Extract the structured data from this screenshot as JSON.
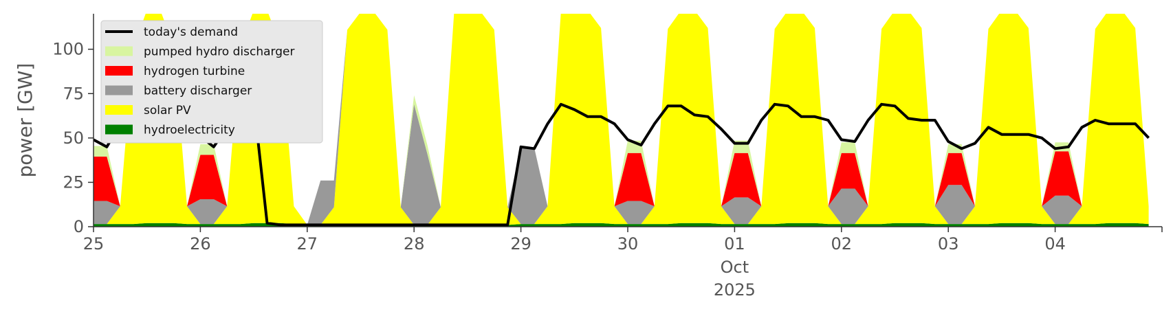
{
  "chart_data": {
    "type": "area",
    "title": "",
    "xlabel": "",
    "ylabel": "power [GW]",
    "ylim": [
      0,
      120
    ],
    "yticks": [
      0,
      25,
      50,
      75,
      100
    ],
    "x_start": "2025-09-25T00:00",
    "x_end": "2025-10-05T00:00",
    "step_hours": 3,
    "xticks": [
      {
        "label": "25",
        "date": "2025-09-25"
      },
      {
        "label": "26",
        "date": "2025-09-26"
      },
      {
        "label": "27",
        "date": "2025-09-27"
      },
      {
        "label": "28",
        "date": "2025-09-28"
      },
      {
        "label": "29",
        "date": "2025-09-29"
      },
      {
        "label": "30",
        "date": "2025-09-30"
      },
      {
        "label": "01",
        "date": "2025-10-01",
        "sub": [
          "Oct",
          "2025"
        ]
      },
      {
        "label": "02",
        "date": "2025-10-02"
      },
      {
        "label": "03",
        "date": "2025-10-03"
      },
      {
        "label": "04",
        "date": "2025-10-04"
      }
    ],
    "grid": false,
    "legend_position": "top-left",
    "series": [
      {
        "name": "hydroelectricity",
        "color": "#008000",
        "values": [
          1.5,
          1.5,
          1.5,
          1.5,
          2,
          2,
          2,
          1.5,
          1.5,
          1.5,
          1.5,
          1.5,
          2,
          2,
          2,
          1.5,
          1,
          1,
          1,
          1,
          1,
          1,
          1,
          1,
          1,
          1,
          1,
          1,
          1,
          1,
          1,
          1,
          1.5,
          1.5,
          1.5,
          1.5,
          2,
          2,
          2,
          1.5,
          1.5,
          1.5,
          1.5,
          1.5,
          2,
          2,
          2,
          1.5,
          1.5,
          1.5,
          1.5,
          1.5,
          2,
          2,
          2,
          1.5,
          1.5,
          1.5,
          1.5,
          1.5,
          2,
          2,
          2,
          1.5,
          1.5,
          1.5,
          1.5,
          1.5,
          2,
          2,
          2,
          1.5,
          1.5,
          1.5,
          1.5,
          1.5,
          2,
          2,
          2,
          1.5
        ]
      },
      {
        "name": "solar PV",
        "color": "#ffff00",
        "values": [
          0,
          0,
          10,
          100,
          120,
          120,
          100,
          10,
          0,
          0,
          10,
          100,
          120,
          120,
          100,
          10,
          0,
          0,
          10,
          110,
          120,
          120,
          110,
          10,
          0,
          0,
          10,
          120,
          120,
          120,
          110,
          10,
          0,
          0,
          10,
          120,
          120,
          120,
          110,
          10,
          0,
          0,
          10,
          110,
          120,
          120,
          110,
          10,
          0,
          0,
          10,
          110,
          120,
          120,
          110,
          10,
          0,
          0,
          10,
          110,
          120,
          120,
          110,
          10,
          0,
          0,
          10,
          110,
          120,
          120,
          110,
          10,
          0,
          0,
          10,
          110,
          120,
          120,
          110,
          10
        ]
      },
      {
        "name": "battery discharger",
        "color": "#999999",
        "values": [
          13,
          13,
          0,
          0,
          0,
          0,
          0,
          0,
          14,
          14,
          0,
          0,
          0,
          0,
          0,
          0,
          0,
          25,
          15,
          0,
          0,
          0,
          0,
          0,
          68,
          40,
          0,
          0,
          0,
          0,
          0,
          0,
          43,
          43,
          0,
          0,
          0,
          0,
          0,
          0,
          13,
          13,
          0,
          0,
          0,
          0,
          0,
          0,
          15,
          15,
          0,
          0,
          0,
          0,
          0,
          0,
          20,
          20,
          0,
          0,
          0,
          0,
          0,
          0,
          22,
          22,
          0,
          0,
          0,
          0,
          0,
          0,
          16,
          16,
          0,
          0,
          0,
          0,
          0,
          0
        ]
      },
      {
        "name": "hydrogen turbine",
        "color": "#ff0000",
        "values": [
          25,
          25,
          0,
          0,
          0,
          0,
          0,
          0,
          25,
          25,
          0,
          0,
          0,
          0,
          0,
          0,
          0,
          0,
          0,
          0,
          0,
          0,
          0,
          0,
          0,
          0,
          0,
          0,
          0,
          0,
          0,
          0,
          0,
          0,
          0,
          0,
          0,
          0,
          0,
          0,
          27,
          27,
          0,
          0,
          0,
          0,
          0,
          0,
          25,
          25,
          0,
          0,
          0,
          0,
          0,
          0,
          20,
          20,
          0,
          0,
          0,
          0,
          0,
          0,
          18,
          18,
          0,
          0,
          0,
          0,
          0,
          0,
          25,
          25,
          0,
          0,
          0,
          0,
          0,
          0
        ]
      },
      {
        "name": "pumped hydro discharger",
        "color": "#d8f5a0",
        "values": [
          6,
          6,
          0,
          0,
          0,
          0,
          0,
          0,
          6,
          6,
          0,
          0,
          0,
          0,
          0,
          0,
          0,
          0,
          0,
          0,
          0,
          0,
          0,
          0,
          5,
          5,
          0,
          0,
          0,
          0,
          0,
          0,
          0,
          0,
          0,
          0,
          0,
          0,
          0,
          0,
          7,
          7,
          0,
          0,
          0,
          0,
          0,
          0,
          7,
          7,
          0,
          0,
          0,
          0,
          0,
          0,
          6,
          6,
          0,
          0,
          0,
          0,
          0,
          0,
          5,
          5,
          0,
          0,
          0,
          0,
          0,
          0,
          5,
          5,
          0,
          0,
          0,
          0,
          0,
          0
        ]
      },
      {
        "name": "today's demand",
        "color": "#000000",
        "type": "line",
        "values": [
          49,
          45,
          58,
          68,
          72,
          68,
          62,
          60,
          51,
          45,
          56,
          67,
          70,
          2,
          1,
          1,
          1,
          1,
          1,
          1,
          1,
          1,
          1,
          1,
          1,
          1,
          1,
          1,
          1,
          1,
          1,
          1,
          45,
          44,
          58,
          69,
          66,
          62,
          62,
          58,
          49,
          46,
          58,
          68,
          68,
          63,
          62,
          55,
          47,
          47,
          60,
          69,
          68,
          62,
          62,
          60,
          49,
          48,
          60,
          69,
          68,
          61,
          60,
          60,
          48,
          44,
          47,
          56,
          52,
          52,
          52,
          50,
          44,
          45,
          56,
          60,
          58,
          58,
          58,
          50
        ]
      }
    ]
  }
}
